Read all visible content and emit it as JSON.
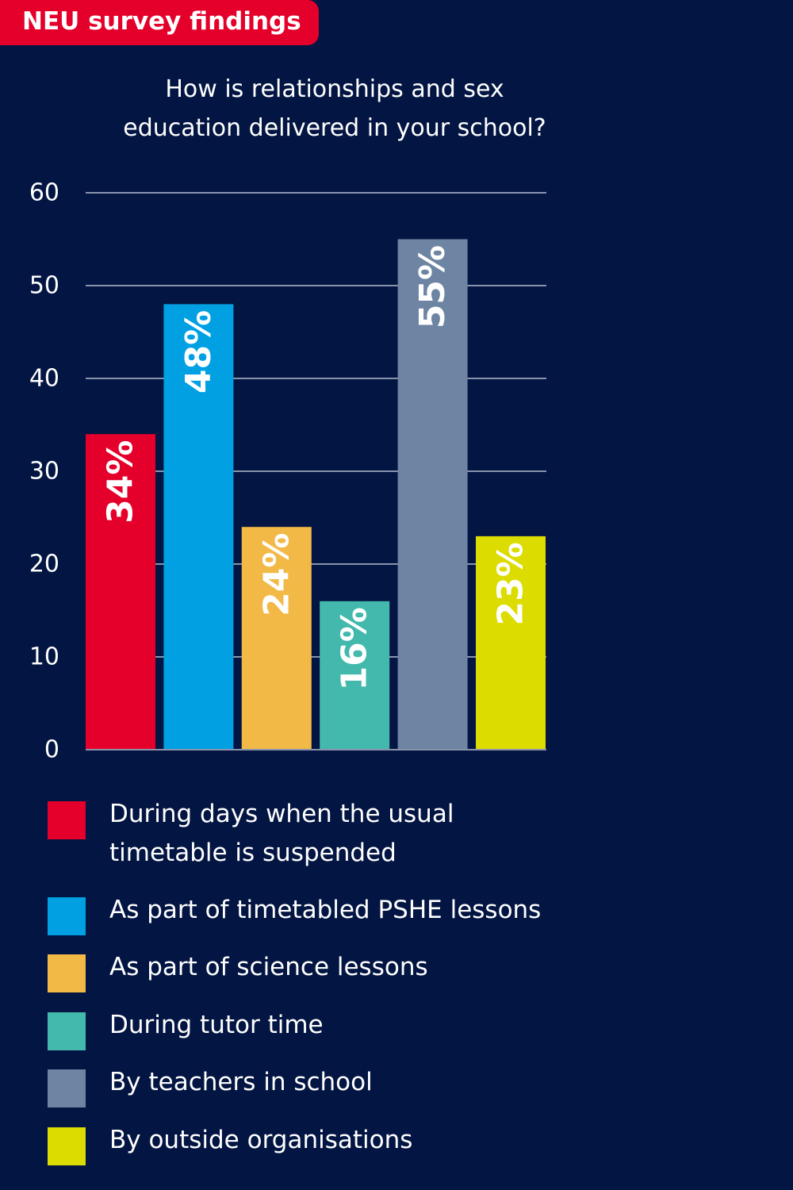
{
  "header": {
    "tag": "NEU survey findings"
  },
  "chart_data": {
    "type": "bar",
    "title_lines": [
      "How is relationships and sex",
      "education delivered in your school?"
    ],
    "xlabel": "",
    "ylabel": "",
    "ylim": [
      0,
      60
    ],
    "yticks": [
      0,
      10,
      20,
      30,
      40,
      50,
      60
    ],
    "grid": true,
    "legend_position": "bottom",
    "categories": [
      "During days when the usual timetable is suspended",
      "As part of timetabled PSHE lessons",
      "As part of science lessons",
      "During tutor time",
      "By teachers in school",
      "By outside organisations"
    ],
    "values": [
      34,
      48,
      24,
      16,
      55,
      23
    ],
    "value_labels": [
      "34%",
      "48%",
      "24%",
      "16%",
      "55%",
      "23%"
    ],
    "colors": [
      "#e4002b",
      "#00a0e2",
      "#f2b947",
      "#43b8ac",
      "#6e84a3",
      "#dcdc00"
    ],
    "legend": {
      "lines": [
        [
          "During days when the usual",
          "timetable is suspended"
        ],
        [
          "As part of timetabled PSHE lessons"
        ],
        [
          "As part of science lessons"
        ],
        [
          "During tutor time"
        ],
        [
          "By teachers in school"
        ],
        [
          "By outside organisations"
        ]
      ]
    }
  }
}
